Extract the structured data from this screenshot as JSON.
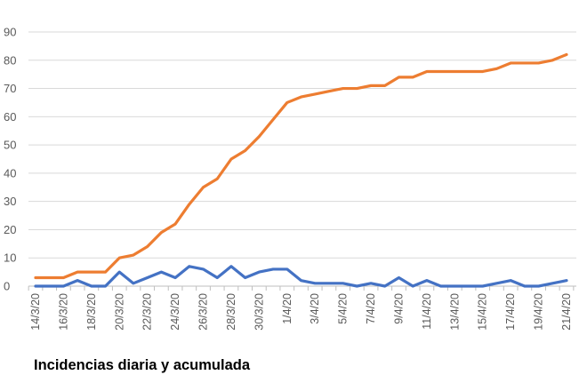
{
  "caption": "Incidencias diaria y acumulada",
  "chart_data": {
    "type": "line",
    "title": "",
    "xlabel": "",
    "ylabel": "",
    "ylim": [
      0,
      90
    ],
    "yticks": [
      0,
      10,
      20,
      30,
      40,
      50,
      60,
      70,
      80,
      90
    ],
    "grid": true,
    "legend": "none",
    "x": [
      "14/3/20",
      "15/3/20",
      "16/3/20",
      "17/3/20",
      "18/3/20",
      "19/3/20",
      "20/3/20",
      "21/3/20",
      "22/3/20",
      "23/3/20",
      "24/3/20",
      "25/3/20",
      "26/3/20",
      "27/3/20",
      "28/3/20",
      "29/3/20",
      "30/3/20",
      "31/3/20",
      "1/4/20",
      "2/4/20",
      "3/4/20",
      "4/4/20",
      "5/4/20",
      "6/4/20",
      "7/4/20",
      "8/4/20",
      "9/4/20",
      "10/4/20",
      "11/4/20",
      "12/4/20",
      "13/4/20",
      "14/4/20",
      "15/4/20",
      "16/4/20",
      "17/4/20",
      "18/4/20",
      "19/4/20",
      "20/4/20",
      "21/4/20"
    ],
    "xtick_labels": [
      "14/3/20",
      "16/3/20",
      "18/3/20",
      "20/3/20",
      "22/3/20",
      "24/3/20",
      "26/3/20",
      "28/3/20",
      "30/3/20",
      "1/4/20",
      "3/4/20",
      "5/4/20",
      "7/4/20",
      "9/4/20",
      "11/4/20",
      "13/4/20",
      "15/4/20",
      "17/4/20",
      "19/4/20",
      "21/4/20"
    ],
    "series": [
      {
        "color": "#4472c4",
        "values": [
          0,
          0,
          0,
          2,
          0,
          0,
          5,
          1,
          3,
          5,
          3,
          7,
          6,
          3,
          7,
          3,
          5,
          6,
          6,
          2,
          1,
          1,
          1,
          0,
          1,
          0,
          3,
          0,
          2,
          0,
          0,
          0,
          0,
          1,
          2,
          0,
          0,
          1,
          2
        ]
      },
      {
        "color": "#ed7d31",
        "values": [
          3,
          3,
          3,
          5,
          5,
          5,
          10,
          11,
          14,
          19,
          22,
          29,
          35,
          38,
          45,
          48,
          53,
          59,
          65,
          67,
          68,
          69,
          70,
          70,
          71,
          71,
          74,
          74,
          76,
          76,
          76,
          76,
          76,
          77,
          79,
          79,
          79,
          80,
          82
        ]
      }
    ]
  }
}
